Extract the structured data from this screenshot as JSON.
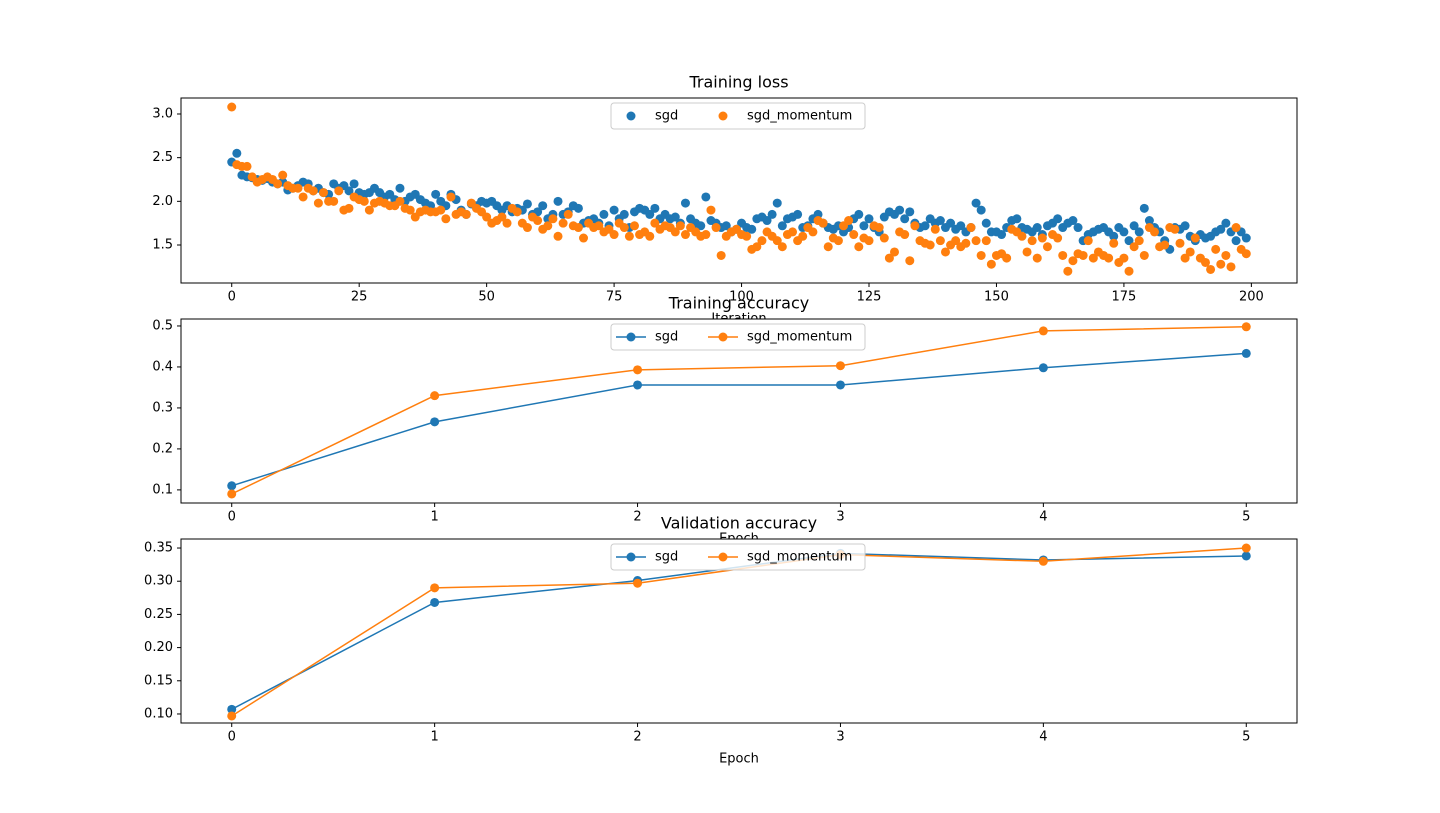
{
  "chart_data": [
    {
      "type": "scatter",
      "title": "Training loss",
      "x_label": "Iteration",
      "legend": "upper center",
      "x": [
        0,
        1,
        2,
        3,
        4,
        5,
        6,
        7,
        8,
        9,
        10,
        11,
        12,
        13,
        14,
        15,
        16,
        17,
        18,
        19,
        20,
        21,
        22,
        23,
        24,
        25,
        26,
        27,
        28,
        29,
        30,
        31,
        32,
        33,
        34,
        35,
        36,
        37,
        38,
        39,
        40,
        41,
        42,
        43,
        44,
        45,
        46,
        47,
        48,
        49,
        50,
        51,
        52,
        53,
        54,
        55,
        56,
        57,
        58,
        59,
        60,
        61,
        62,
        63,
        64,
        65,
        66,
        67,
        68,
        69,
        70,
        71,
        72,
        73,
        74,
        75,
        76,
        77,
        78,
        79,
        80,
        81,
        82,
        83,
        84,
        85,
        86,
        87,
        88,
        89,
        90,
        91,
        92,
        93,
        94,
        95,
        96,
        97,
        98,
        99,
        100,
        101,
        102,
        103,
        104,
        105,
        106,
        107,
        108,
        109,
        110,
        111,
        112,
        113,
        114,
        115,
        116,
        117,
        118,
        119,
        120,
        121,
        122,
        123,
        124,
        125,
        126,
        127,
        128,
        129,
        130,
        131,
        132,
        133,
        134,
        135,
        136,
        137,
        138,
        139,
        140,
        141,
        142,
        143,
        144,
        145,
        146,
        147,
        148,
        149,
        150,
        151,
        152,
        153,
        154,
        155,
        156,
        157,
        158,
        159,
        160,
        161,
        162,
        163,
        164,
        165,
        166,
        167,
        168,
        169,
        170,
        171,
        172,
        173,
        174,
        175,
        176,
        177,
        178,
        179,
        180,
        181,
        182,
        183,
        184,
        185,
        186,
        187,
        188,
        189,
        190,
        191,
        192,
        193,
        194,
        195,
        196,
        197,
        198,
        199
      ],
      "series": [
        {
          "name": "sgd",
          "color": "#1f77b4",
          "values": [
            2.45,
            2.55,
            2.3,
            2.28,
            2.27,
            2.25,
            2.24,
            2.26,
            2.22,
            2.2,
            2.22,
            2.13,
            2.15,
            2.18,
            2.22,
            2.2,
            2.12,
            2.15,
            2.1,
            2.08,
            2.2,
            2.15,
            2.18,
            2.12,
            2.2,
            2.1,
            2.08,
            2.1,
            2.15,
            2.1,
            2.05,
            2.08,
            2.02,
            2.15,
            2.0,
            2.05,
            2.08,
            2.02,
            1.98,
            1.95,
            2.08,
            2.0,
            1.95,
            2.08,
            2.02,
            1.9,
            1.85,
            1.97,
            1.95,
            2.0,
            1.98,
            2.0,
            1.95,
            1.9,
            1.95,
            1.88,
            1.92,
            1.9,
            1.97,
            1.85,
            1.88,
            1.95,
            1.8,
            1.85,
            2.0,
            1.85,
            1.88,
            1.95,
            1.92,
            1.75,
            1.78,
            1.8,
            1.75,
            1.85,
            1.72,
            1.9,
            1.8,
            1.85,
            1.7,
            1.88,
            1.92,
            1.9,
            1.85,
            1.92,
            1.8,
            1.85,
            1.8,
            1.82,
            1.75,
            1.98,
            1.8,
            1.75,
            1.72,
            2.05,
            1.78,
            1.75,
            1.7,
            1.72,
            1.65,
            1.68,
            1.75,
            1.7,
            1.68,
            1.8,
            1.82,
            1.78,
            1.85,
            1.98,
            1.72,
            1.8,
            1.82,
            1.85,
            1.7,
            1.72,
            1.8,
            1.85,
            1.75,
            1.7,
            1.68,
            1.72,
            1.65,
            1.7,
            1.8,
            1.85,
            1.72,
            1.8,
            1.7,
            1.65,
            1.82,
            1.88,
            1.85,
            1.9,
            1.8,
            1.88,
            1.75,
            1.7,
            1.72,
            1.8,
            1.75,
            1.78,
            1.7,
            1.75,
            1.68,
            1.72,
            1.65,
            1.7,
            1.98,
            1.9,
            1.75,
            1.65,
            1.65,
            1.62,
            1.7,
            1.78,
            1.8,
            1.7,
            1.68,
            1.65,
            1.7,
            1.62,
            1.72,
            1.75,
            1.8,
            1.7,
            1.75,
            1.78,
            1.7,
            1.55,
            1.62,
            1.65,
            1.68,
            1.7,
            1.65,
            1.6,
            1.7,
            1.65,
            1.55,
            1.72,
            1.65,
            1.92,
            1.78,
            1.7,
            1.65,
            1.55,
            1.45,
            1.7,
            1.68,
            1.72,
            1.6,
            1.55,
            1.62,
            1.58,
            1.6,
            1.65,
            1.68,
            1.75,
            1.65,
            1.55,
            1.65,
            1.58
          ]
        },
        {
          "name": "sgd_momentum",
          "color": "#ff7f0e",
          "values": [
            3.08,
            2.42,
            2.4,
            2.4,
            2.28,
            2.22,
            2.25,
            2.28,
            2.25,
            2.2,
            2.3,
            2.18,
            2.15,
            2.15,
            2.05,
            2.15,
            2.12,
            1.98,
            2.1,
            2.0,
            2.0,
            2.12,
            1.9,
            1.92,
            2.05,
            2.02,
            2.0,
            1.9,
            1.98,
            2.0,
            1.98,
            1.95,
            1.95,
            2.0,
            1.92,
            1.9,
            1.82,
            1.88,
            1.9,
            1.88,
            1.88,
            1.9,
            1.8,
            2.05,
            1.85,
            1.88,
            1.85,
            1.98,
            1.92,
            1.88,
            1.82,
            1.75,
            1.78,
            1.82,
            1.75,
            1.92,
            1.88,
            1.75,
            1.7,
            1.82,
            1.78,
            1.68,
            1.72,
            1.8,
            1.6,
            1.75,
            1.85,
            1.72,
            1.7,
            1.58,
            1.75,
            1.7,
            1.72,
            1.65,
            1.68,
            1.62,
            1.75,
            1.7,
            1.6,
            1.72,
            1.62,
            1.65,
            1.6,
            1.75,
            1.68,
            1.72,
            1.7,
            1.65,
            1.72,
            1.62,
            1.7,
            1.65,
            1.6,
            1.62,
            1.9,
            1.7,
            1.38,
            1.6,
            1.65,
            1.68,
            1.62,
            1.6,
            1.45,
            1.48,
            1.55,
            1.65,
            1.6,
            1.55,
            1.48,
            1.62,
            1.65,
            1.55,
            1.6,
            1.7,
            1.65,
            1.78,
            1.75,
            1.48,
            1.58,
            1.55,
            1.72,
            1.78,
            1.62,
            1.48,
            1.58,
            1.55,
            1.72,
            1.7,
            1.58,
            1.35,
            1.42,
            1.65,
            1.62,
            1.32,
            1.72,
            1.55,
            1.52,
            1.5,
            1.68,
            1.55,
            1.42,
            1.5,
            1.55,
            1.48,
            1.52,
            1.7,
            1.55,
            1.38,
            1.55,
            1.28,
            1.38,
            1.4,
            1.35,
            1.68,
            1.65,
            1.6,
            1.42,
            1.55,
            1.35,
            1.58,
            1.48,
            1.62,
            1.58,
            1.38,
            1.2,
            1.32,
            1.4,
            1.38,
            1.55,
            1.35,
            1.42,
            1.38,
            1.35,
            1.52,
            1.3,
            1.35,
            1.2,
            1.48,
            1.55,
            1.38,
            1.7,
            1.65,
            1.48,
            1.5,
            1.7,
            1.68,
            1.52,
            1.35,
            1.42,
            1.58,
            1.35,
            1.3,
            1.22,
            1.45,
            1.28,
            1.38,
            1.25,
            1.7,
            1.45,
            1.4
          ]
        }
      ],
      "xlim": [
        -9.95,
        208.95
      ],
      "xticks": [
        0,
        25,
        50,
        75,
        100,
        125,
        150,
        175,
        200
      ],
      "ylim": [
        1.065,
        3.183
      ],
      "yticks": [
        1.5,
        {
          "value": 2,
          "label": "2.0"
        },
        2.5,
        {
          "value": 3,
          "label": "3.0"
        }
      ]
    },
    {
      "type": "line",
      "title": "Training accuracy",
      "x_label": "Epoch",
      "legend": "upper center",
      "x": [
        0,
        1,
        2,
        3,
        4,
        5
      ],
      "series": [
        {
          "name": "sgd",
          "color": "#1f77b4",
          "values": [
            0.11,
            0.266,
            0.356,
            0.356,
            0.398,
            0.433
          ]
        },
        {
          "name": "sgd_momentum",
          "color": "#ff7f0e",
          "values": [
            0.09,
            0.33,
            0.393,
            0.403,
            0.488,
            0.498
          ]
        }
      ],
      "xlim": [
        -0.25,
        5.25
      ],
      "xticks": [
        0,
        1,
        2,
        3,
        4,
        5
      ],
      "ylim": [
        0.068,
        0.517
      ],
      "yticks": [
        0.1,
        0.2,
        0.3,
        0.4,
        0.5
      ]
    },
    {
      "type": "line",
      "title": "Validation accuracy",
      "x_label": "Epoch",
      "legend": "upper center",
      "x": [
        0,
        1,
        2,
        3,
        4,
        5
      ],
      "series": [
        {
          "name": "sgd",
          "color": "#1f77b4",
          "values": [
            0.107,
            0.268,
            0.301,
            0.342,
            0.332,
            0.338
          ]
        },
        {
          "name": "sgd_momentum",
          "color": "#ff7f0e",
          "values": [
            0.097,
            0.29,
            0.297,
            0.34,
            0.33,
            0.35
          ]
        }
      ],
      "xlim": [
        -0.25,
        5.25
      ],
      "xticks": [
        0,
        1,
        2,
        3,
        4,
        5
      ],
      "ylim": [
        0.0864,
        0.3636
      ],
      "yticks": [
        {
          "value": 0.1,
          "label": "0.10"
        },
        0.15,
        {
          "value": 0.2,
          "label": "0.20"
        },
        0.25,
        {
          "value": 0.3,
          "label": "0.30"
        },
        0.35
      ]
    }
  ]
}
